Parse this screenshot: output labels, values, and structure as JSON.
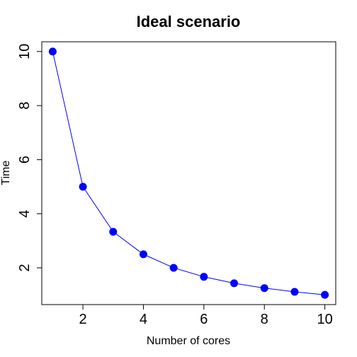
{
  "chart_data": {
    "type": "line",
    "title": "Ideal scenario",
    "xlabel": "Number of cores",
    "ylabel": "Time",
    "x": [
      1,
      2,
      3,
      4,
      5,
      6,
      7,
      8,
      9,
      10
    ],
    "series": [
      {
        "values": [
          10,
          5,
          3.333,
          2.5,
          2,
          1.667,
          1.429,
          1.25,
          1.111,
          1
        ],
        "color": "#0000ff",
        "marker": "filled-circle"
      }
    ],
    "xlim": [
      0.64,
      10.36
    ],
    "ylim": [
      0.64,
      10.36
    ],
    "xticks": [
      2,
      4,
      6,
      8,
      10
    ],
    "yticks": [
      2,
      4,
      6,
      8,
      10
    ],
    "grid": false,
    "legend": "none"
  }
}
